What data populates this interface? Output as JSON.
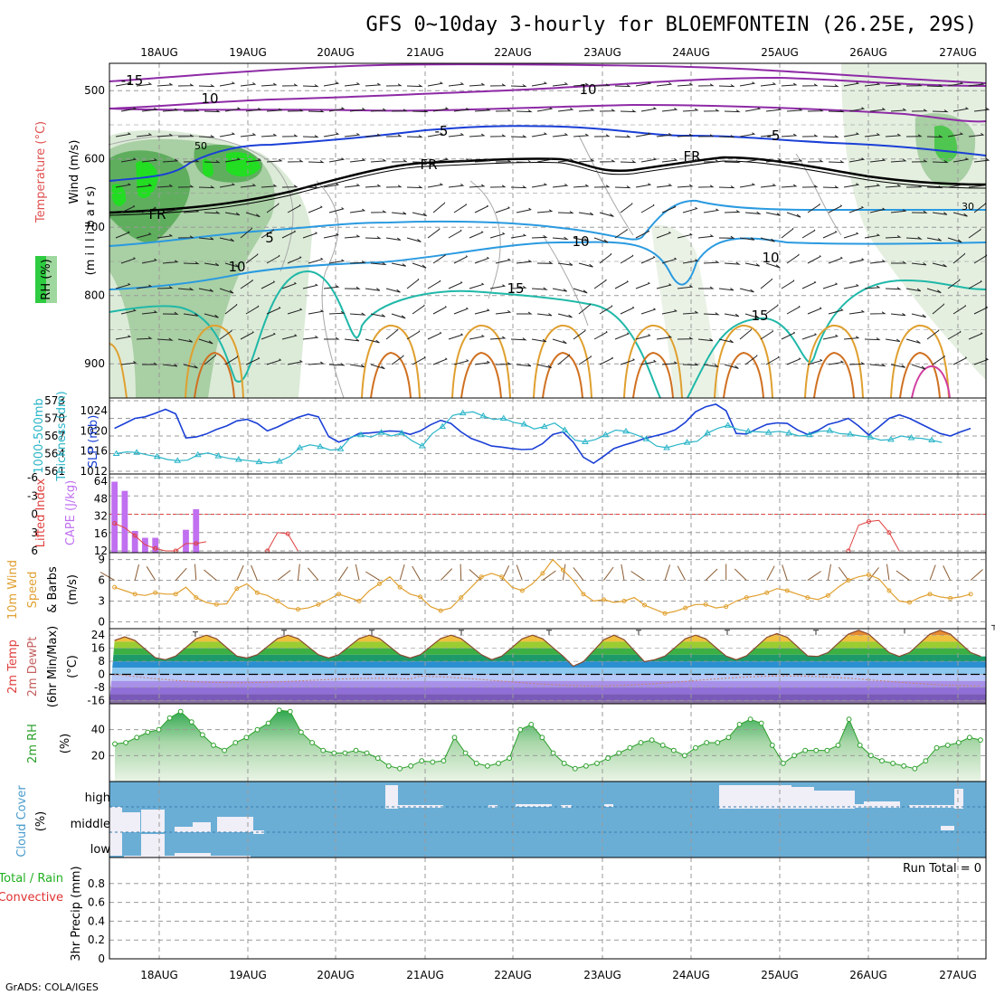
{
  "title": "GFS 0~10day 3-hourly for BLOEMFONTEIN (26.25E, 29S)",
  "date_labels": [
    "18AUG",
    "19AUG",
    "20AUG",
    "21AUG",
    "22AUG",
    "23AUG",
    "24AUG",
    "25AUG",
    "26AUG",
    "27AUG"
  ],
  "credit": "GrADS: COLA/IGES",
  "colors": {
    "wind_label": "#000000",
    "temperature_label": "#e05050",
    "rh_label": "#00a000",
    "slp_blue": "#1a3fd6",
    "thickness_cyan": "#2ab5c8",
    "cape_purple": "#c070f0",
    "lifted_red": "#e04040",
    "wind10_orange": "#e0a030",
    "barb_brown": "#8a5a30",
    "rh_green": "#2ca02c",
    "cloud_blue": "#6aaed6",
    "cloud_white": "#f0eef6",
    "precip_green": "#20b020",
    "precip_red": "#e03030"
  },
  "panel1": {
    "ylabel_parts": [
      "Wind",
      " (m/s)",
      "Temperature",
      " (°C)"
    ],
    "rh_label": "RH (%)",
    "millibars": "(m i l l i b a r s)",
    "yticks": [
      "500",
      "600",
      "700",
      "800",
      "900"
    ],
    "contour_labels": [
      "-15",
      "10",
      "10",
      "-5",
      "-5",
      "FR",
      "FR",
      "FR",
      "5",
      "10",
      "10",
      "10",
      "15",
      "15",
      "50",
      "30"
    ]
  },
  "panel2": {
    "ylabel1": "1000-500mb",
    "ylabel2": "Thickness (dm)",
    "ylabel3": "SLP (mb)",
    "left_ticks": [
      "573",
      "570",
      "567",
      "564",
      "561"
    ],
    "right_ticks": [
      "1024",
      "1020",
      "1016",
      "1012"
    ]
  },
  "panel3": {
    "ylabel1": "Lifted Index",
    "ylabel2": "CAPE (J/kg)",
    "left_ticks": [
      "-6",
      "-3",
      "0",
      "3",
      "6"
    ],
    "right_ticks": [
      "64",
      "48",
      "32",
      "16",
      "12"
    ]
  },
  "panel4": {
    "ylabel1": "10m Wind",
    "ylabel2": "Speed",
    "ylabel3": "& Barbs",
    "ylabel4": "(m/s)",
    "yticks": [
      "9",
      "6",
      "3",
      "0"
    ]
  },
  "panel5": {
    "ylabel1": "2m Temp",
    "ylabel2": "2m DewPt",
    "ylabel3": "(6hr Min/Max)",
    "ylabel4": "(°C)",
    "yticks": [
      "24",
      "16",
      "8",
      "0",
      "-8",
      "-16"
    ]
  },
  "panel6": {
    "ylabel1": "2m RH",
    "ylabel2": "(%)",
    "yticks": [
      "40",
      "20"
    ]
  },
  "panel7": {
    "ylabel1": "Cloud Cover",
    "ylabel2": "(%)",
    "levels": [
      "high",
      "middle",
      "low"
    ]
  },
  "panel8": {
    "ylabel1": "Total / Rain",
    "ylabel2": "Convective",
    "ylabel3": "3hr Precip (mm)",
    "run_total": "Run Total = 0",
    "yticks": [
      "0.8",
      "0.6",
      "0.4",
      "0.2",
      "0"
    ]
  },
  "chart_data": [
    {
      "type": "line",
      "title": "Sea level pressure and 1000-500mb thickness",
      "x_unit": "3-hourly steps from 17AUG 12Z",
      "series": [
        {
          "name": "SLP (mb)",
          "values": [
            1020.5,
            1021.5,
            1022.5,
            1022.8,
            1023.5,
            1024.3,
            1023.4,
            1018.6,
            1018.8,
            1019.4,
            1020.3,
            1021.0,
            1022.0,
            1022.3,
            1021.5,
            1020.0,
            1020.8,
            1021.8,
            1022.7,
            1023.3,
            1022.8,
            1018.9,
            1017.8,
            1018.5,
            1019.5,
            1019.6,
            1019.8,
            1020.0,
            1019.9,
            1019.3,
            1020.0,
            1021.2,
            1022.1,
            1021.5,
            1019.8,
            1018.5,
            1017.8,
            1017.0,
            1016.8,
            1016.5,
            1016.3,
            1016.4,
            1017.5,
            1019.3,
            1019.8,
            1017.8,
            1014.8,
            1013.6,
            1015.0,
            1016.5,
            1017.2,
            1017.8,
            1018.5,
            1019.0,
            1019.5,
            1020.2,
            1021.7,
            1023.8,
            1024.8,
            1025.3,
            1024.0,
            1019.5,
            1019.4,
            1020.4,
            1021.3,
            1021.6,
            1021.5,
            1020.2,
            1019.3,
            1020.1,
            1021.3,
            1021.8,
            1022.5,
            1021.0,
            1019.2,
            1020.8,
            1022.5,
            1023.2,
            1022.5,
            1021.5,
            1020.5,
            1019.5,
            1019.0,
            1019.8,
            1020.5
          ]
        },
        {
          "name": "1000-500mb thickness (dm)",
          "values": [
            564.0,
            564.3,
            564.2,
            563.8,
            563.5,
            563.0,
            562.8,
            562.9,
            563.8,
            564.1,
            563.6,
            563.2,
            563.0,
            562.8,
            562.6,
            562.4,
            562.7,
            563.5,
            565.0,
            565.5,
            565.2,
            564.6,
            564.8,
            566.8,
            567.2,
            566.8,
            567.6,
            567.0,
            567.5,
            566.2,
            565.3,
            567.4,
            568.6,
            570.5,
            570.9,
            571.1,
            570.4,
            569.8,
            570.0,
            569.3,
            569.0,
            568.2,
            568.6,
            569.2,
            568.0,
            566.3,
            566.0,
            566.4,
            567.2,
            568.0,
            567.8,
            567.2,
            566.5,
            565.3,
            565.0,
            565.5,
            565.9,
            566.1,
            567.5,
            568.3,
            568.8,
            568.1,
            567.8,
            567.7,
            567.6,
            567.8,
            567.5,
            567.0,
            567.2,
            567.8,
            567.9,
            567.4,
            567.3,
            567.0,
            566.8,
            566.3,
            566.4,
            567.0,
            566.7,
            566.6,
            566.3,
            565.9
          ]
        }
      ],
      "left_axis": {
        "label": "1000-500mb Thickness (dm)",
        "range": [
          561,
          573
        ]
      },
      "right_axis": {
        "label": "SLP (mb)",
        "range": [
          1012,
          1026
        ]
      }
    },
    {
      "type": "bar",
      "title": "CAPE and Lifted Index",
      "cape_bars": [
        {
          "step": 0,
          "value": 62
        },
        {
          "step": 1,
          "value": 54
        },
        {
          "step": 2,
          "value": 19
        },
        {
          "step": 3,
          "value": 13
        },
        {
          "step": 4,
          "value": 13
        },
        {
          "step": 7,
          "value": 20
        },
        {
          "step": 8,
          "value": 38
        }
      ],
      "lifted_index_segments": [
        {
          "start_step": 0,
          "values": [
            1.5,
            2.2,
            3.5,
            5.0,
            5.6,
            6.0,
            6.0,
            4.8,
            4.8,
            4.5
          ]
        },
        {
          "start_step": 15,
          "values": [
            6.0,
            3.0,
            3.2,
            6.0
          ]
        },
        {
          "start_step": 72,
          "values": [
            6.0,
            1.8,
            1.2,
            1.0,
            3.0,
            6.0
          ]
        }
      ],
      "left_axis": {
        "label": "Lifted Index",
        "range": [
          -6,
          6
        ]
      },
      "right_axis": {
        "label": "CAPE (J/kg)",
        "range": [
          0,
          64
        ]
      }
    },
    {
      "type": "line",
      "title": "10m Wind Speed",
      "ylabel": "(m/s)",
      "values": [
        5.0,
        4.5,
        4.0,
        3.8,
        4.2,
        4.0,
        4.0,
        5.0,
        3.5,
        2.8,
        2.5,
        2.6,
        4.8,
        5.5,
        4.2,
        3.8,
        3.0,
        2.0,
        1.8,
        2.0,
        2.5,
        3.2,
        4.0,
        3.5,
        3.0,
        4.5,
        5.5,
        6.5,
        5.0,
        4.0,
        3.6,
        2.2,
        1.6,
        2.0,
        3.5,
        5.0,
        6.5,
        7.0,
        6.5,
        5.0,
        4.5,
        5.5,
        7.0,
        9.0,
        7.5,
        6.0,
        4.0,
        3.0,
        3.2,
        2.8,
        3.0,
        3.5,
        2.4,
        1.8,
        1.2,
        1.5,
        2.0,
        2.5,
        2.5,
        2.0,
        2.2,
        3.0,
        3.5,
        3.8,
        4.2,
        4.8,
        4.5,
        4.0,
        3.5,
        3.2,
        3.8,
        5.0,
        6.0,
        6.5,
        6.8,
        6.2,
        4.5,
        3.0,
        2.8,
        3.5,
        4.0,
        3.6,
        3.4,
        3.6,
        4.0
      ],
      "ylim": [
        -1,
        10
      ]
    },
    {
      "type": "line",
      "title": "2m Temperature",
      "ylabel": "(°C)",
      "diurnal_max": [
        23,
        24,
        24,
        24,
        24,
        24,
        24,
        24,
        25,
        27
      ],
      "diurnal_min": [
        8,
        9,
        10,
        10,
        10,
        9,
        5,
        9,
        9,
        11
      ],
      "ylim": [
        -18,
        28
      ]
    },
    {
      "type": "area",
      "title": "2m RH",
      "ylabel": "(%)",
      "values": [
        29,
        30,
        34,
        38,
        40,
        49,
        54,
        46,
        36,
        28,
        24,
        30,
        34,
        40,
        45,
        55,
        54,
        38,
        30,
        24,
        22,
        22,
        24,
        22,
        18,
        12,
        10,
        12,
        16,
        15,
        16,
        34,
        22,
        14,
        12,
        14,
        18,
        40,
        44,
        34,
        22,
        14,
        10,
        12,
        14,
        18,
        22,
        26,
        30,
        32,
        28,
        24,
        20,
        26,
        30,
        30,
        34,
        44,
        48,
        45,
        28,
        14,
        20,
        24,
        24,
        24,
        28,
        48,
        28,
        20,
        16,
        14,
        12,
        10,
        16,
        26,
        28,
        30,
        34,
        32
      ],
      "ylim": [
        0,
        60
      ]
    },
    {
      "type": "bar",
      "title": "3hr Precip (mm)",
      "values": [],
      "ylim": [
        0,
        1
      ]
    }
  ]
}
